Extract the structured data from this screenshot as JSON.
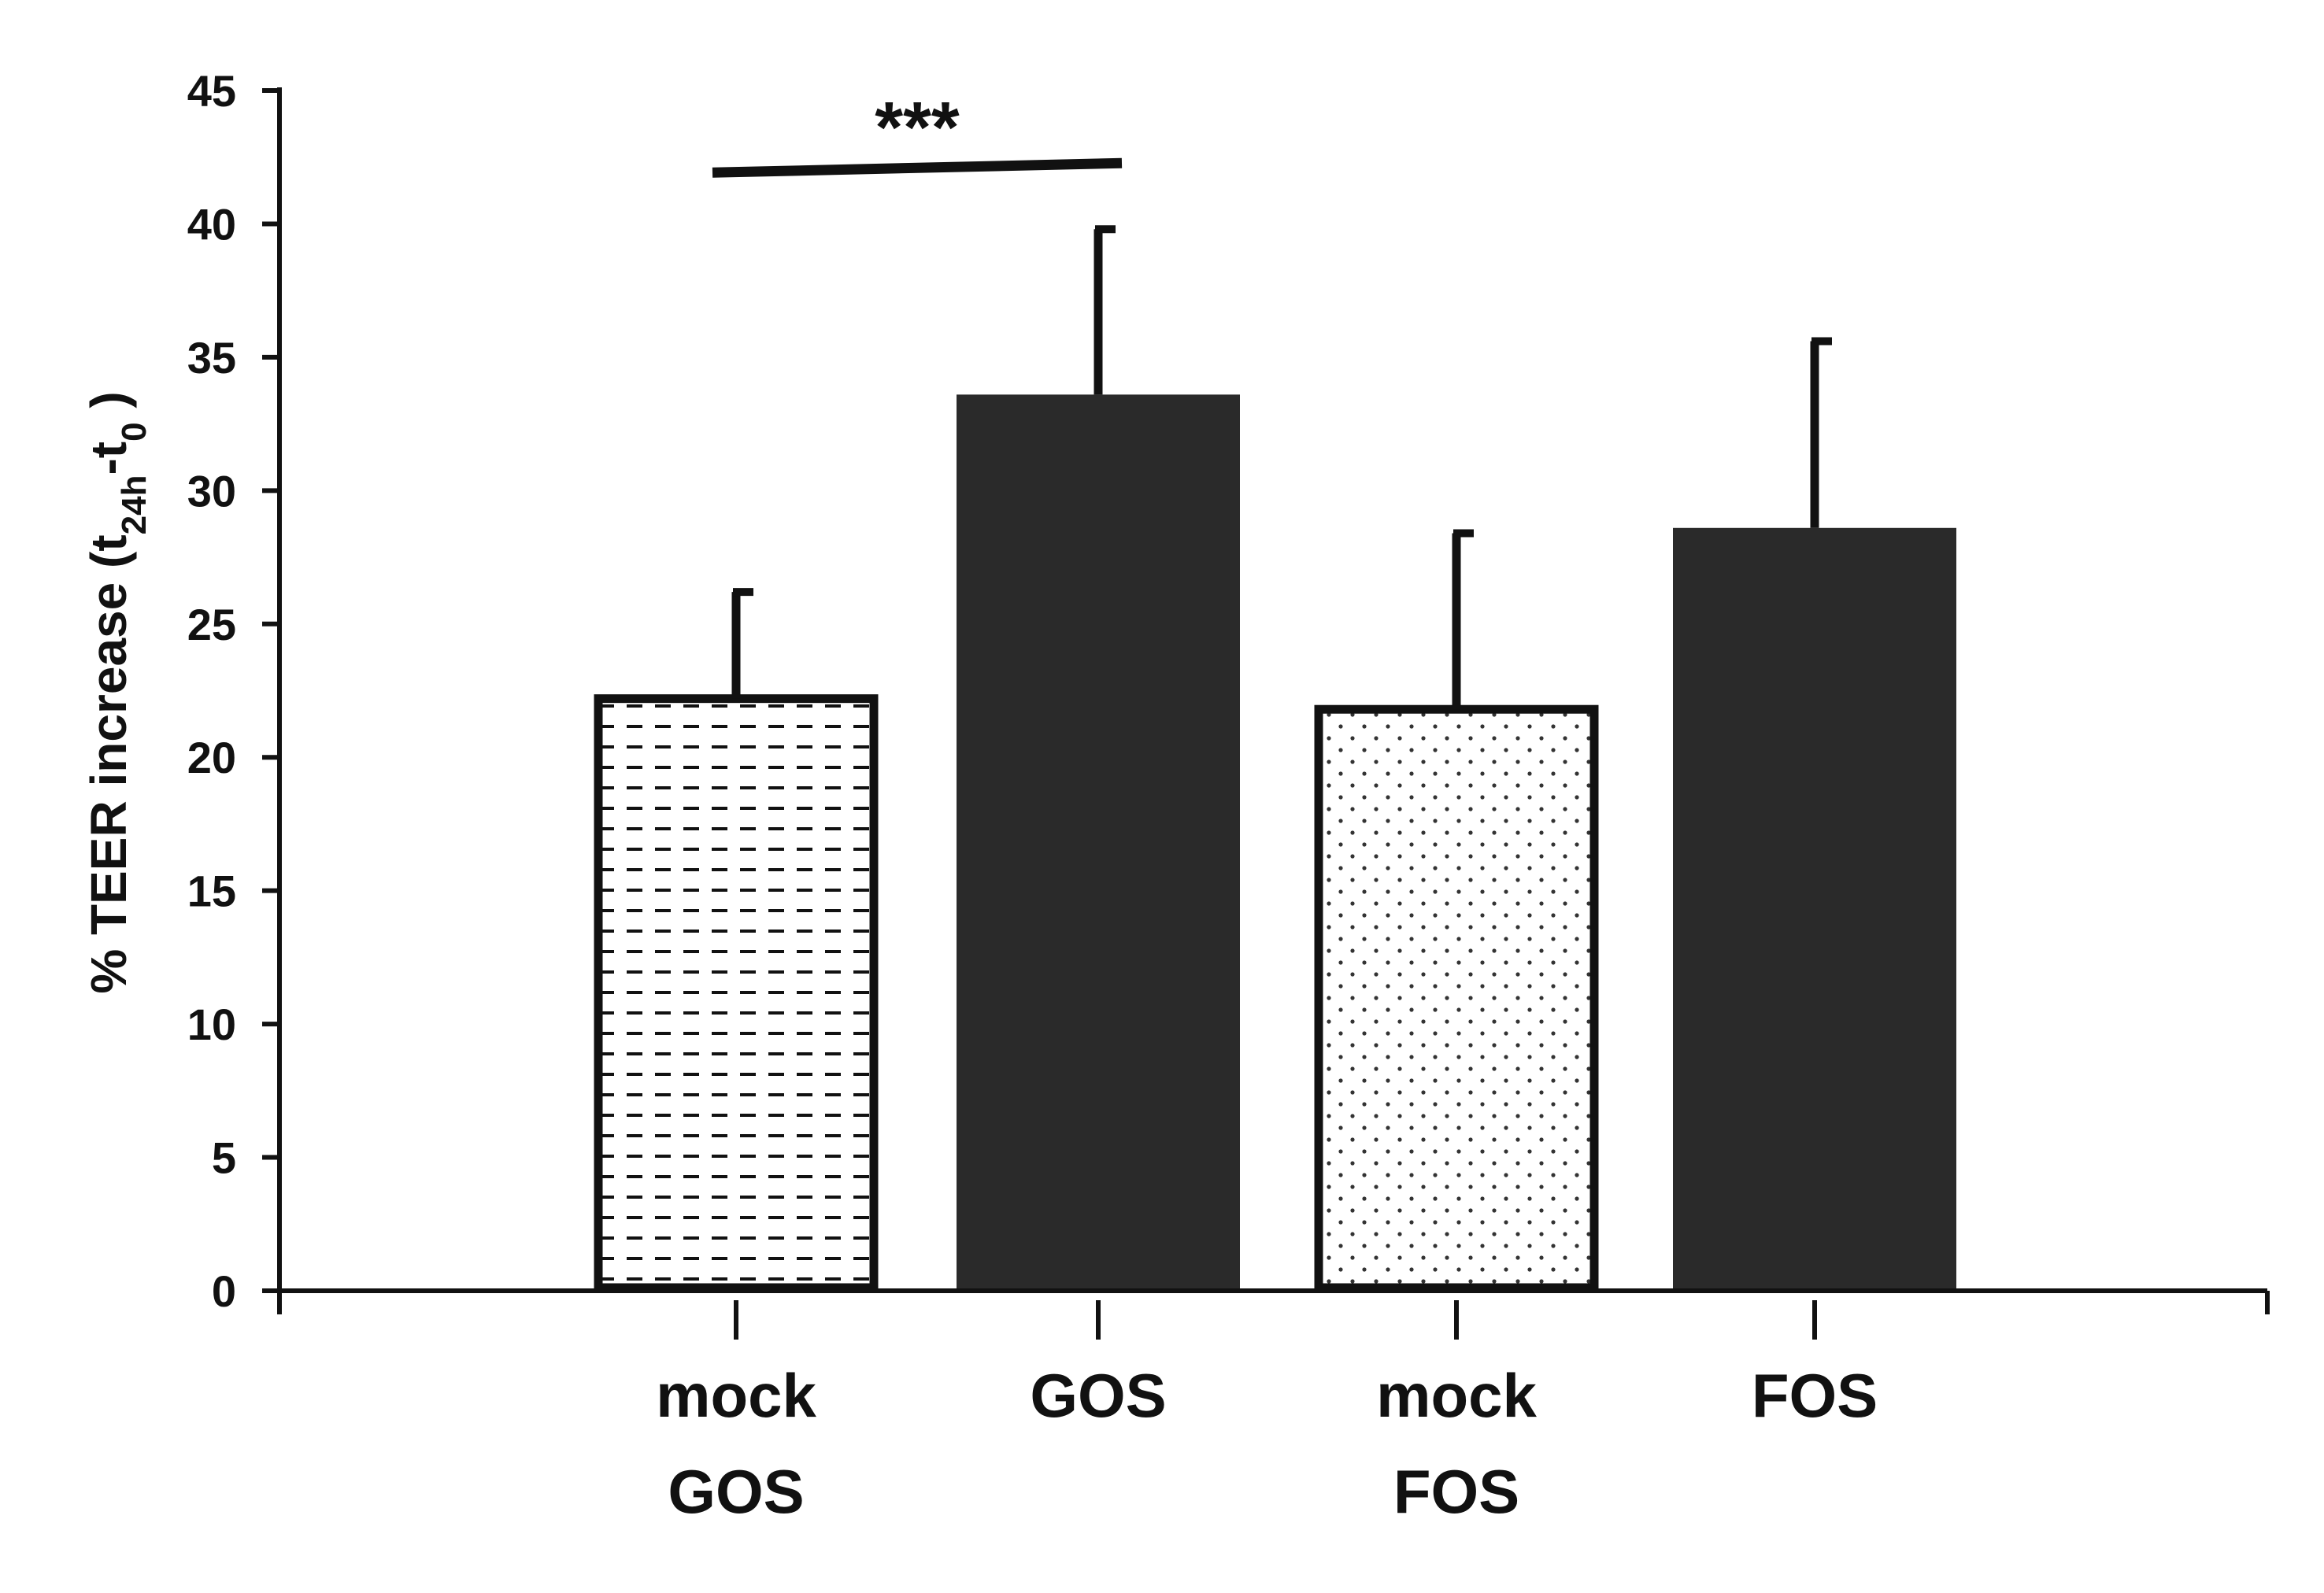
{
  "chart_data": {
    "type": "bar",
    "categories": [
      [
        "mock",
        "GOS"
      ],
      [
        "GOS"
      ],
      [
        "mock",
        "FOS"
      ],
      [
        "FOS"
      ]
    ],
    "values": [
      22.2,
      33.6,
      21.8,
      28.6
    ],
    "errors": [
      4.0,
      6.2,
      6.6,
      7.0
    ],
    "fills": [
      "dashed-hatch",
      "solid",
      "dotted",
      "solid"
    ],
    "ylabel": {
      "main": "% TEER increase (t",
      "sub1": "24h",
      "mid": "-t",
      "sub2": "0",
      "end": " )"
    },
    "ylim": [
      0,
      45
    ],
    "yticks": [
      0,
      5,
      10,
      15,
      20,
      25,
      30,
      35,
      40,
      45
    ],
    "significance": {
      "from": 0,
      "to": 1,
      "label": "***",
      "y": 42.1
    },
    "colors": {
      "dark": "#2a2a2a",
      "axis": "#111111"
    },
    "grid": false,
    "legend": "none"
  }
}
